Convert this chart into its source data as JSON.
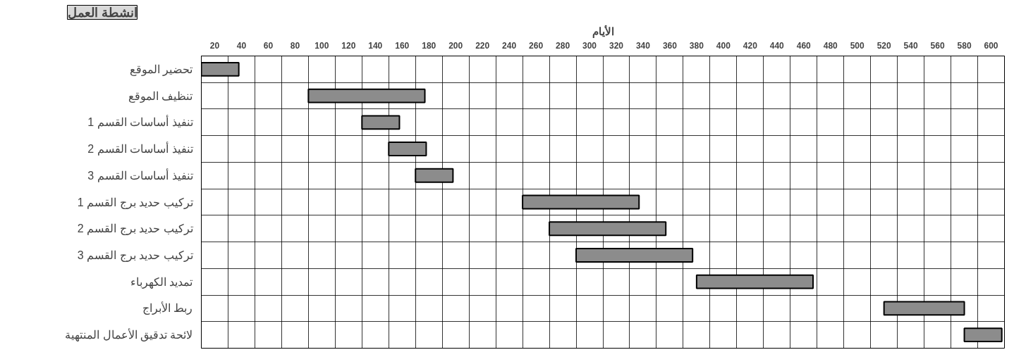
{
  "chart_data": {
    "type": "bar",
    "orientation": "horizontal",
    "xlabel": "الأيام",
    "ylabel": "انشطة العمل",
    "categories": [
      "تحضير الموقع",
      "تنظيف الموقع",
      "تنفيذ أساسات القسم 1",
      "تنفيذ أساسات القسم 2",
      "تنفيذ أساسات القسم 3",
      "تركيب حديد برج القسم 1",
      "تركيب حديد برج القسم 2",
      "تركيب حديد برج القسم 3",
      "تمديد الكهرباء",
      "ربط الأبراج",
      "لائحة تدقيق الأعمال المنتهية"
    ],
    "base": [
      10,
      90,
      130,
      150,
      170,
      250,
      270,
      290,
      380,
      520,
      580
    ],
    "values": [
      28,
      87,
      28,
      28,
      28,
      87,
      87,
      87,
      87,
      60,
      28
    ],
    "color": "#8c8c8c",
    "xlim": [
      10,
      610
    ],
    "xticks": [
      20,
      40,
      60,
      80,
      100,
      120,
      140,
      160,
      180,
      200,
      220,
      240,
      260,
      280,
      300,
      320,
      340,
      360,
      380,
      400,
      420,
      440,
      460,
      480,
      500,
      520,
      540,
      560,
      580,
      600
    ],
    "grid": true
  }
}
